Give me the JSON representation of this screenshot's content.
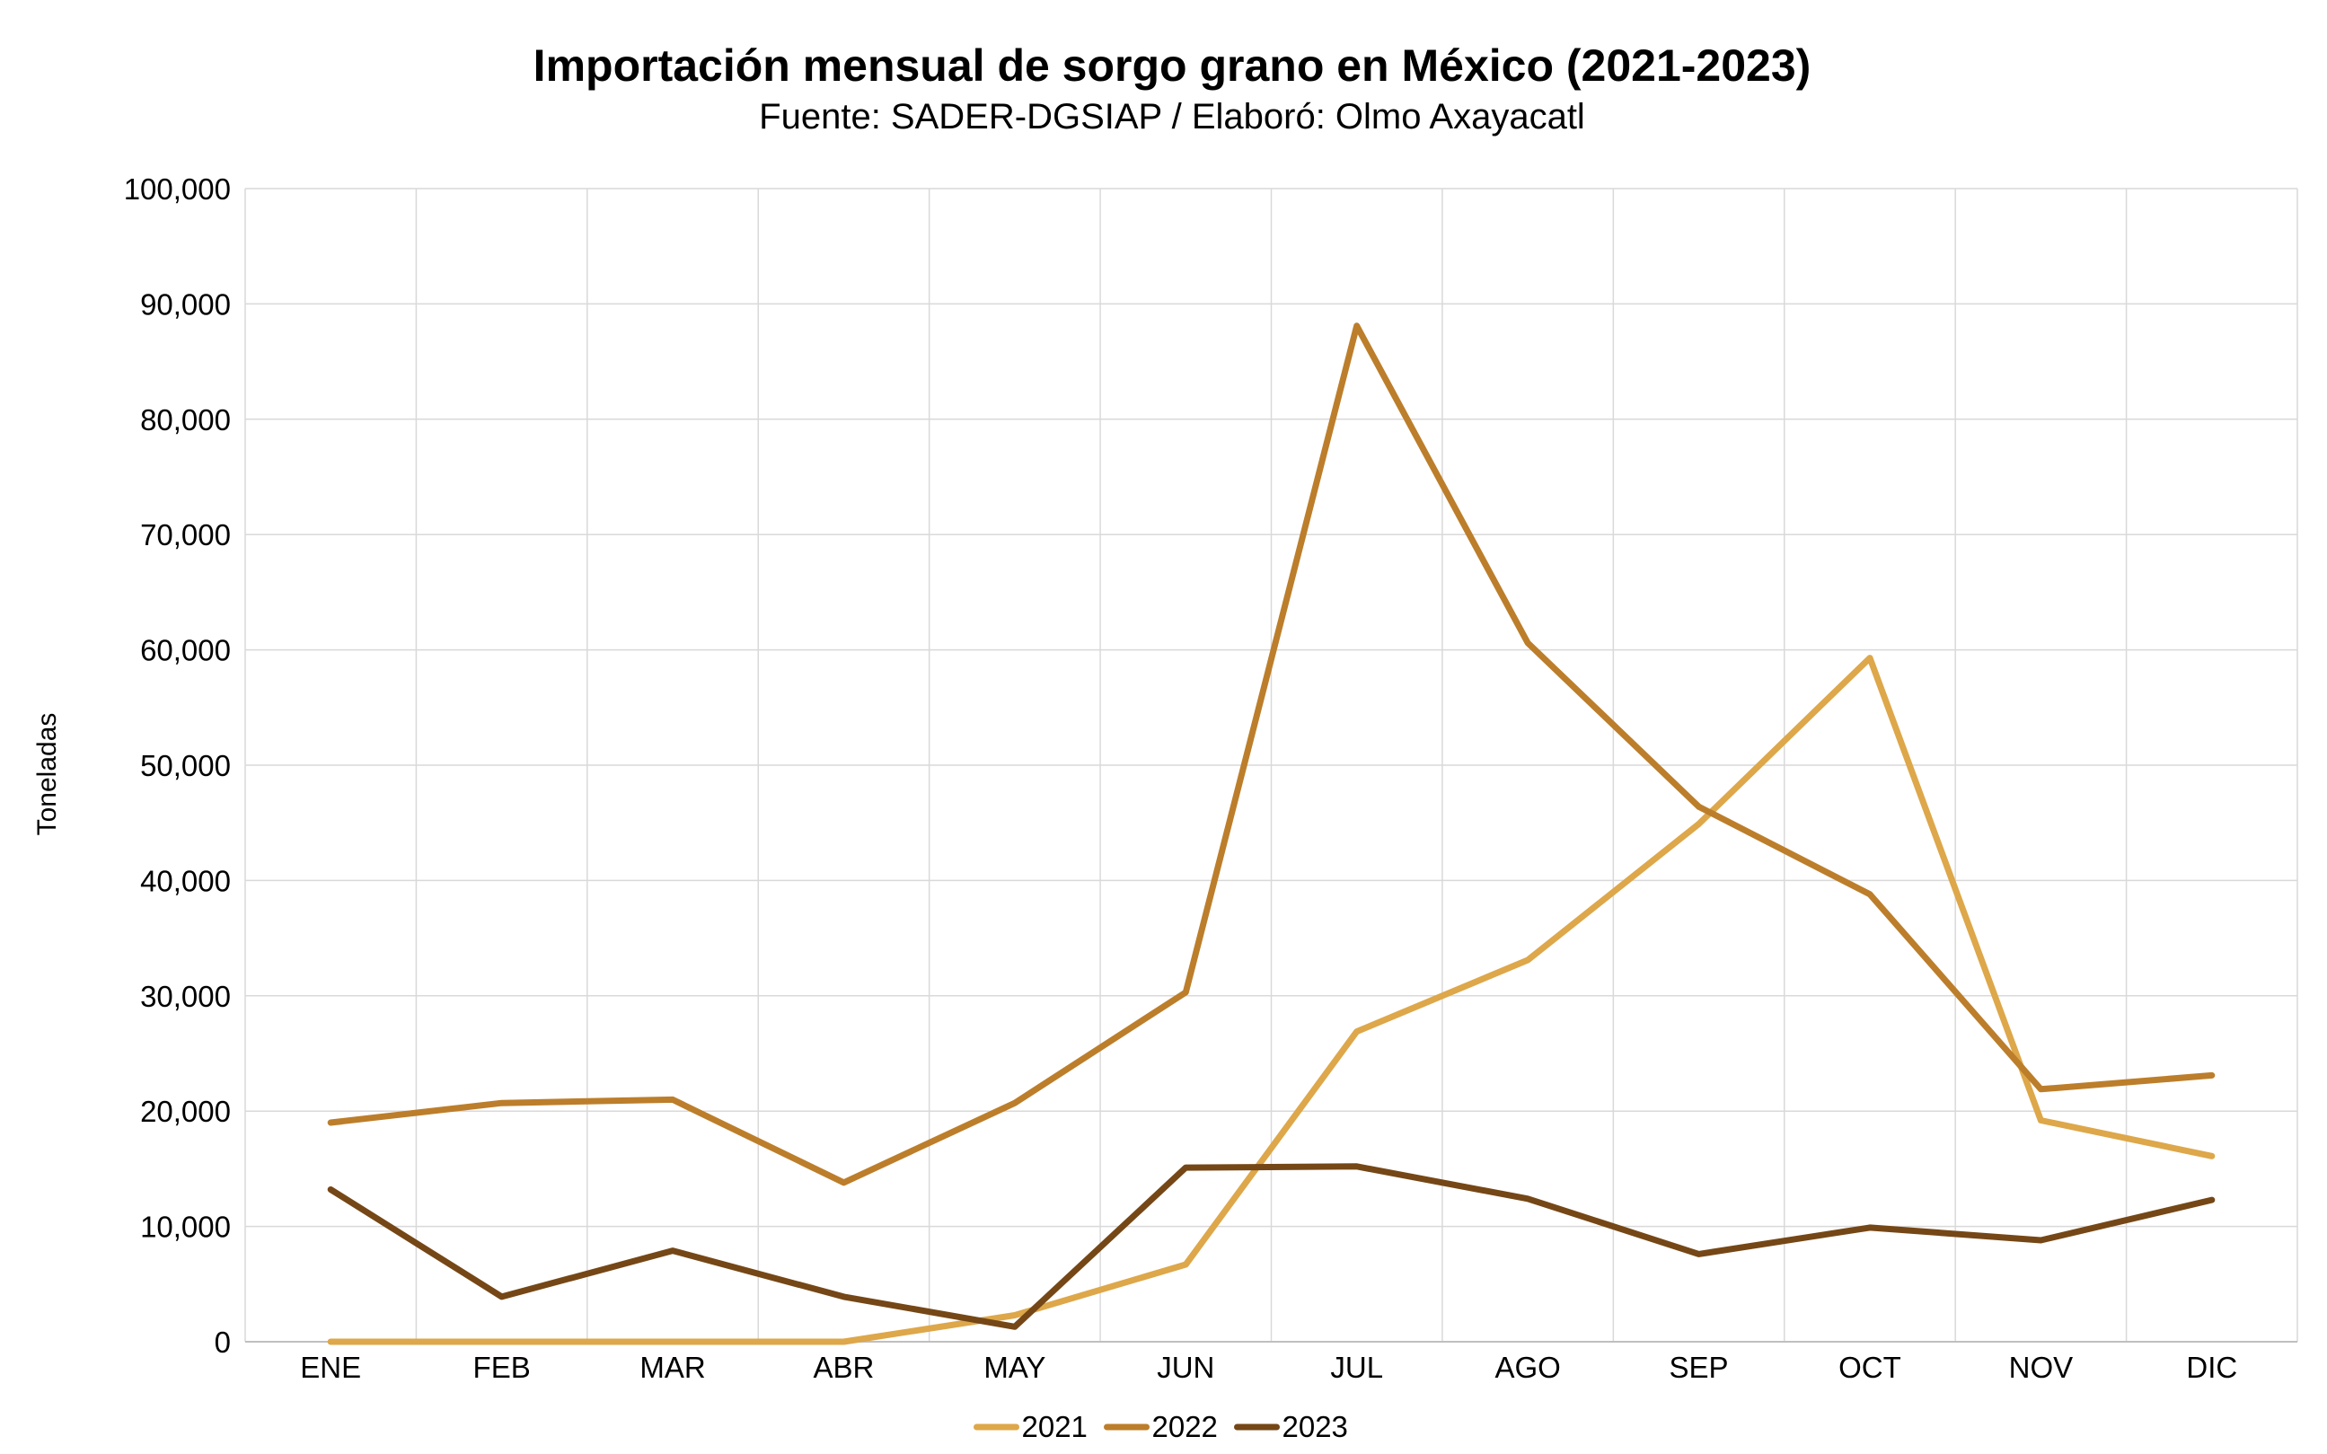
{
  "chart_data": {
    "type": "line",
    "title": "Importación mensual de sorgo grano en México (2021-2023)",
    "subtitle": "Fuente: SADER-DGSIAP / Elaboró: Olmo Axayacatl",
    "xlabel": "",
    "ylabel": "Toneladas",
    "ylim": [
      0,
      100000
    ],
    "y_ticks": [
      0,
      10000,
      20000,
      30000,
      40000,
      50000,
      60000,
      70000,
      80000,
      90000,
      100000
    ],
    "y_tick_labels": [
      "0",
      "10,000",
      "20,000",
      "30,000",
      "40,000",
      "50,000",
      "60,000",
      "70,000",
      "80,000",
      "90,000",
      "100,000"
    ],
    "categories": [
      "ENE",
      "FEB",
      "MAR",
      "ABR",
      "MAY",
      "JUN",
      "JUL",
      "AGO",
      "SEP",
      "OCT",
      "NOV",
      "DIC"
    ],
    "grid": true,
    "legend_position": "bottom",
    "series": [
      {
        "name": "2021",
        "color": "#DDA74A",
        "values": [
          0,
          0,
          0,
          0,
          2300,
          6700,
          26900,
          33100,
          44900,
          59300,
          19200,
          16100
        ]
      },
      {
        "name": "2022",
        "color": "#BC7E2B",
        "values": [
          19000,
          20700,
          21000,
          13800,
          20700,
          30300,
          88100,
          60600,
          46400,
          38800,
          21900,
          23100
        ]
      },
      {
        "name": "2023",
        "color": "#754716",
        "values": [
          13200,
          3900,
          7900,
          3900,
          1300,
          15100,
          15200,
          12400,
          7600,
          9900,
          8800,
          12300
        ]
      }
    ]
  }
}
